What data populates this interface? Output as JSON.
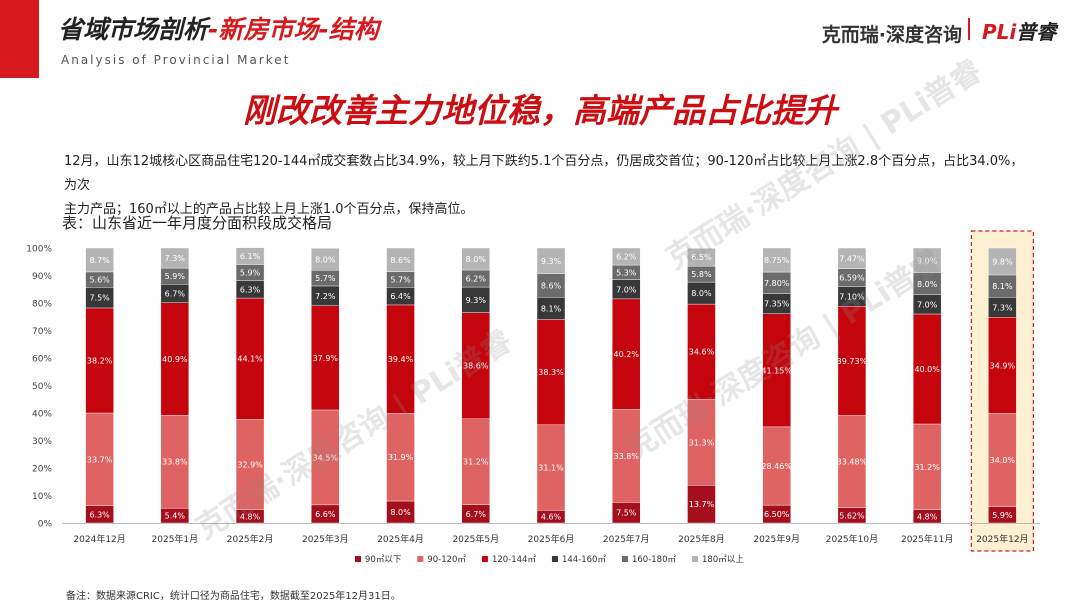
{
  "header": {
    "title_part1": "省域市场剖析",
    "title_part2": "-新房市场-结构",
    "subtitle": "Analysis of Provincial Market",
    "brand": "克而瑞·深度咨询",
    "brand_logo_a": "PLi",
    "brand_logo_b": "普睿",
    "watermark": "克而瑞·深度咨询 | PLi普睿"
  },
  "main_title": "刚改改善主力地位稳，高端产品占比提升",
  "description": {
    "line1": "12月，山东12城核心区商品住宅120-144㎡成交套数占比34.9%，较上月下跌约5.1个百分点，仍居成交首位；90-120㎡占比较上月上涨2.8个百分点，占比34.0%，为次",
    "line2": "主力产品；160㎡以上的产品占比较上月上涨1.0个百分点，保持高位。"
  },
  "table_title": "表：山东省近一年月度分面积段成交格局",
  "footnote": "备注：数据来源CRIC，统计口径为商品住宅，数据截至2025年12月31日。",
  "colors": {
    "brand_red": "#d7191d",
    "highlight_fill": "#fdf1d2",
    "highlight_border": "#d7191d"
  },
  "chart_data": {
    "type": "bar",
    "stacked": true,
    "percent": true,
    "ylim": [
      0,
      100
    ],
    "yticks": [
      "0%",
      "10%",
      "20%",
      "30%",
      "40%",
      "50%",
      "60%",
      "70%",
      "80%",
      "90%",
      "100%"
    ],
    "categories": [
      "2024年12月",
      "2025年1月",
      "2025年2月",
      "2025年3月",
      "2025年4月",
      "2025年5月",
      "2025年6月",
      "2025年7月",
      "2025年8月",
      "2025年9月",
      "2025年10月",
      "2025年11月",
      "2025年12月"
    ],
    "highlight_category": "2025年12月",
    "legend_position": "bottom",
    "series": [
      {
        "name": "90㎡以下",
        "color": "#a50f1d",
        "values": [
          6.3,
          5.4,
          4.8,
          6.6,
          8.0,
          6.7,
          4.6,
          7.5,
          13.7,
          6.5,
          5.62,
          4.8,
          5.9
        ],
        "labels": [
          "6.3%",
          "5.4%",
          "4.8%",
          "6.6%",
          "8.0%",
          "6.7%",
          "4.6%",
          "7.5%",
          "13.7%",
          "6.50%",
          "5.62%",
          "4.8%",
          "5.9%"
        ]
      },
      {
        "name": "90-120㎡",
        "color": "#e06363",
        "values": [
          33.7,
          33.8,
          32.9,
          34.5,
          31.9,
          31.2,
          31.1,
          33.8,
          31.3,
          28.46,
          33.48,
          31.2,
          34.0
        ],
        "labels": [
          "33.7%",
          "33.8%",
          "32.9%",
          "34.5%",
          "31.9%",
          "31.2%",
          "31.1%",
          "33.8%",
          "31.3%",
          "28.46%",
          "33.48%",
          "31.2%",
          "34.0%"
        ]
      },
      {
        "name": "120-144㎡",
        "color": "#c4050d",
        "values": [
          38.2,
          40.9,
          44.1,
          37.9,
          39.4,
          38.6,
          38.3,
          40.2,
          34.6,
          41.15,
          39.73,
          40.0,
          34.9
        ],
        "labels": [
          "38.2%",
          "40.9%",
          "44.1%",
          "37.9%",
          "39.4%",
          "38.6%",
          "38.3%",
          "40.2%",
          "34.6%",
          "41.15%",
          "39.73%",
          "40.0%",
          "34.9%"
        ]
      },
      {
        "name": "144-160㎡",
        "color": "#383838",
        "values": [
          7.5,
          6.7,
          6.3,
          7.2,
          6.4,
          9.3,
          8.1,
          7.0,
          8.0,
          7.35,
          7.1,
          7.0,
          7.3
        ],
        "labels": [
          "7.5%",
          "6.7%",
          "6.3%",
          "7.2%",
          "6.4%",
          "9.3%",
          "8.1%",
          "7.0%",
          "8.0%",
          "7.35%",
          "7.10%",
          "7.0%",
          "7.3%"
        ]
      },
      {
        "name": "160-180㎡",
        "color": "#6b6b6b",
        "values": [
          5.6,
          5.9,
          5.9,
          5.7,
          5.7,
          6.2,
          8.6,
          5.3,
          5.8,
          7.8,
          6.59,
          8.0,
          8.1
        ],
        "labels": [
          "5.6%",
          "5.9%",
          "5.9%",
          "5.7%",
          "5.7%",
          "6.2%",
          "8.6%",
          "5.3%",
          "5.8%",
          "7.80%",
          "6.59%",
          "8.0%",
          "8.1%"
        ]
      },
      {
        "name": "180㎡以上",
        "color": "#b4b4b4",
        "values": [
          8.7,
          7.3,
          6.1,
          8.0,
          8.6,
          8.0,
          9.3,
          6.2,
          6.5,
          8.75,
          7.47,
          9.0,
          9.8
        ],
        "labels": [
          "8.7%",
          "7.3%",
          "6.1%",
          "8.0%",
          "8.6%",
          "8.0%",
          "9.3%",
          "6.2%",
          "6.5%",
          "8.75%",
          "7.47%",
          "9.0%",
          "9.8%"
        ]
      }
    ]
  }
}
